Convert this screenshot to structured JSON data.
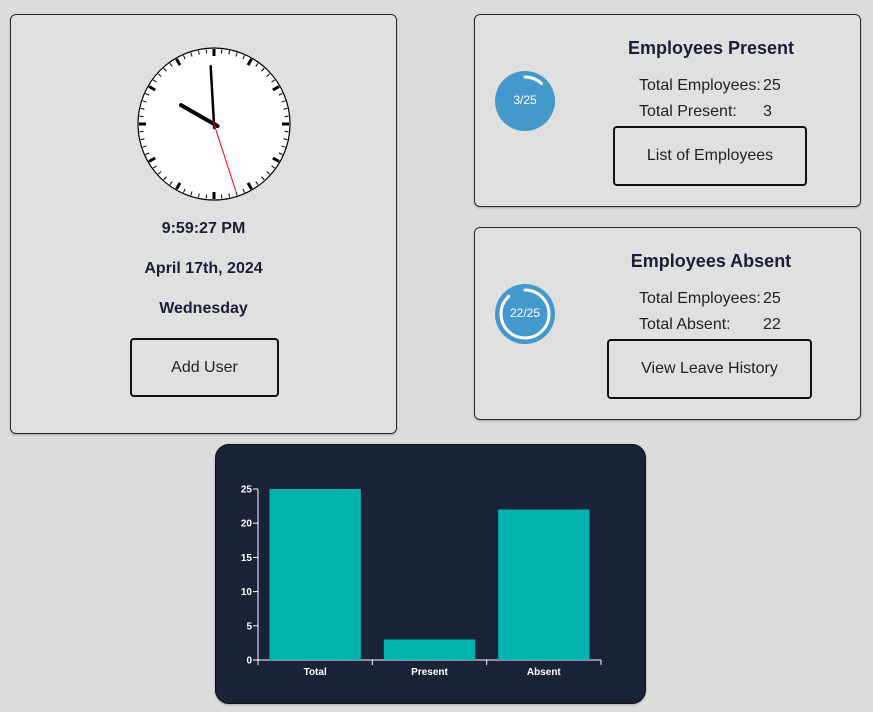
{
  "clock": {
    "time": "9:59:27 PM",
    "date": "April 17th, 2024",
    "day": "Wednesday",
    "add_user_label": "Add User"
  },
  "present": {
    "title": "Employees Present",
    "ring_text": "3/25",
    "ring_fraction": 0.12,
    "total_employees_label": "Total Employees:",
    "total_employees_value": "25",
    "total_present_label": "Total Present:",
    "total_present_value": "3",
    "button_label": "List of Employees"
  },
  "absent": {
    "title": "Employees Absent",
    "ring_text": "22/25",
    "ring_fraction": 0.88,
    "total_employees_label": "Total Employees:",
    "total_employees_value": "25",
    "total_absent_label": "Total Absent:",
    "total_absent_value": "22",
    "button_label": "View Leave History"
  },
  "colors": {
    "page_bg": "#dcdcdc",
    "ring_blue": "#4499cc",
    "chart_bg": "#1a2238",
    "bar": "#00b3ad"
  },
  "chart_data": {
    "type": "bar",
    "categories": [
      "Total",
      "Present",
      "Absent"
    ],
    "values": [
      25,
      3,
      22
    ],
    "yticks": [
      0,
      5,
      10,
      15,
      20,
      25
    ],
    "ylim": [
      0,
      25
    ],
    "title": "",
    "xlabel": "",
    "ylabel": ""
  }
}
